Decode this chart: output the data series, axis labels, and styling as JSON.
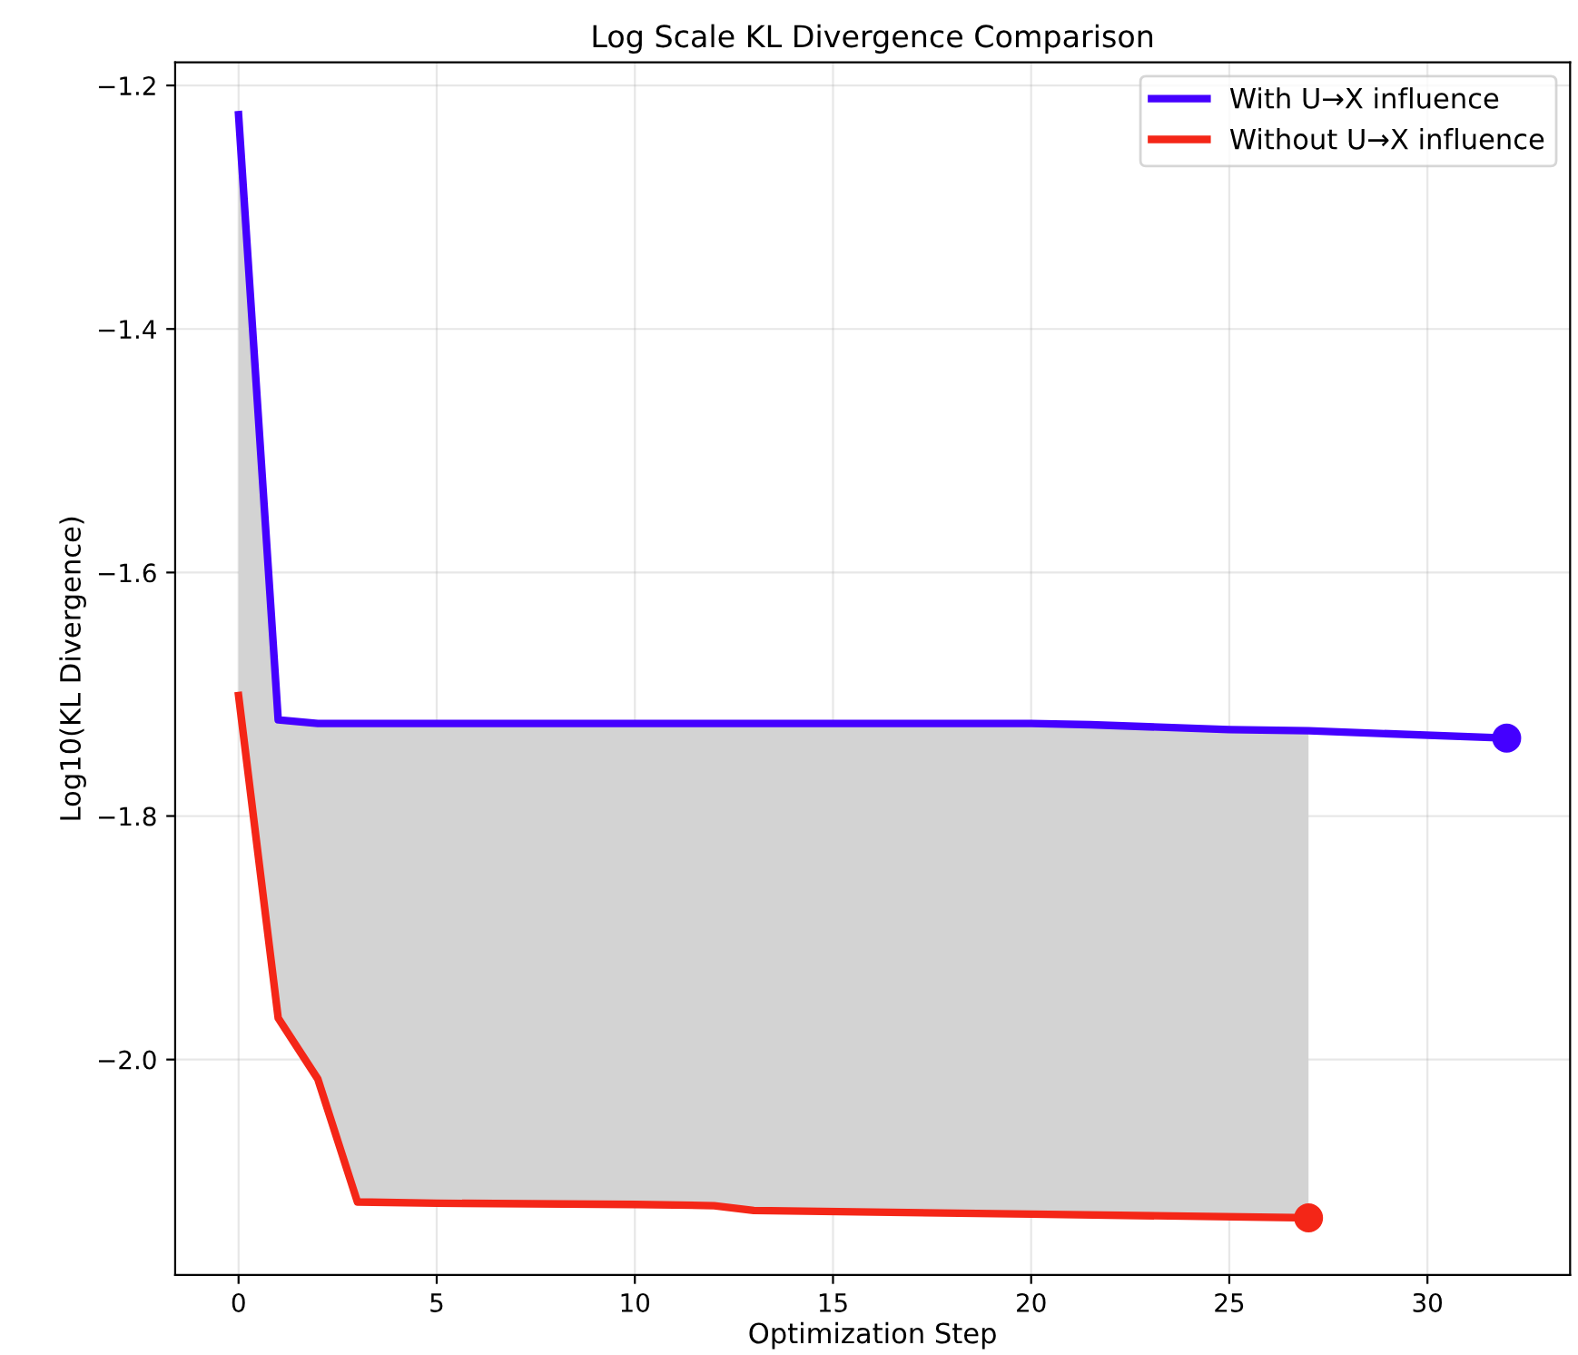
{
  "chart_data": {
    "type": "line",
    "title": "Log Scale KL Divergence Comparison",
    "xlabel": "Optimization Step",
    "ylabel": "Log10(KL Divergence)",
    "xlim": [
      -1.6,
      33.6
    ],
    "xticks": [
      0,
      5,
      10,
      15,
      20,
      25,
      30
    ],
    "ylim": [
      -2.177,
      -1.181
    ],
    "yticks": [
      {
        "value": -2.0,
        "label": "−2.0"
      },
      {
        "value": -1.8,
        "label": "−1.8"
      },
      {
        "value": -1.6,
        "label": "−1.6"
      },
      {
        "value": -1.4,
        "label": "−1.4"
      },
      {
        "value": -1.2,
        "label": "−1.2"
      }
    ],
    "grid": true,
    "legend": "top right",
    "series": [
      {
        "name": "With U→X influence",
        "color": "#4400ff",
        "x": [
          0,
          1,
          2,
          5,
          10,
          15,
          20,
          21.5,
          25,
          27,
          32
        ],
        "values": [
          -1.224,
          -1.721,
          -1.724,
          -1.724,
          -1.724,
          -1.724,
          -1.724,
          -1.725,
          -1.729,
          -1.73,
          -1.736
        ]
      },
      {
        "name": "Without U→X influence",
        "color": "#f42617",
        "x": [
          0,
          1,
          2,
          3,
          5,
          10,
          12,
          13,
          20,
          27
        ],
        "values": [
          -1.701,
          -1.966,
          -2.016,
          -2.117,
          -2.118,
          -2.119,
          -2.12,
          -2.124,
          -2.127,
          -2.13
        ],
        "lower": [
          -1.701,
          -1.966,
          -2.016,
          -2.117,
          -2.118,
          -2.119,
          -2.12,
          -2.124,
          -2.127,
          -2.13
        ],
        "upper": [
          -1.224,
          -1.721,
          -1.724,
          -1.724,
          -1.724,
          -1.724,
          -1.724,
          -1.724,
          -1.724,
          -1.73
        ]
      },
      {
        "type": "scatter",
        "color": "#4400ff",
        "x": [
          32
        ],
        "values": [
          -1.736
        ]
      },
      {
        "type": "scatter",
        "color": "#f42617",
        "x": [
          27
        ],
        "values": [
          -2.13
        ]
      }
    ]
  }
}
